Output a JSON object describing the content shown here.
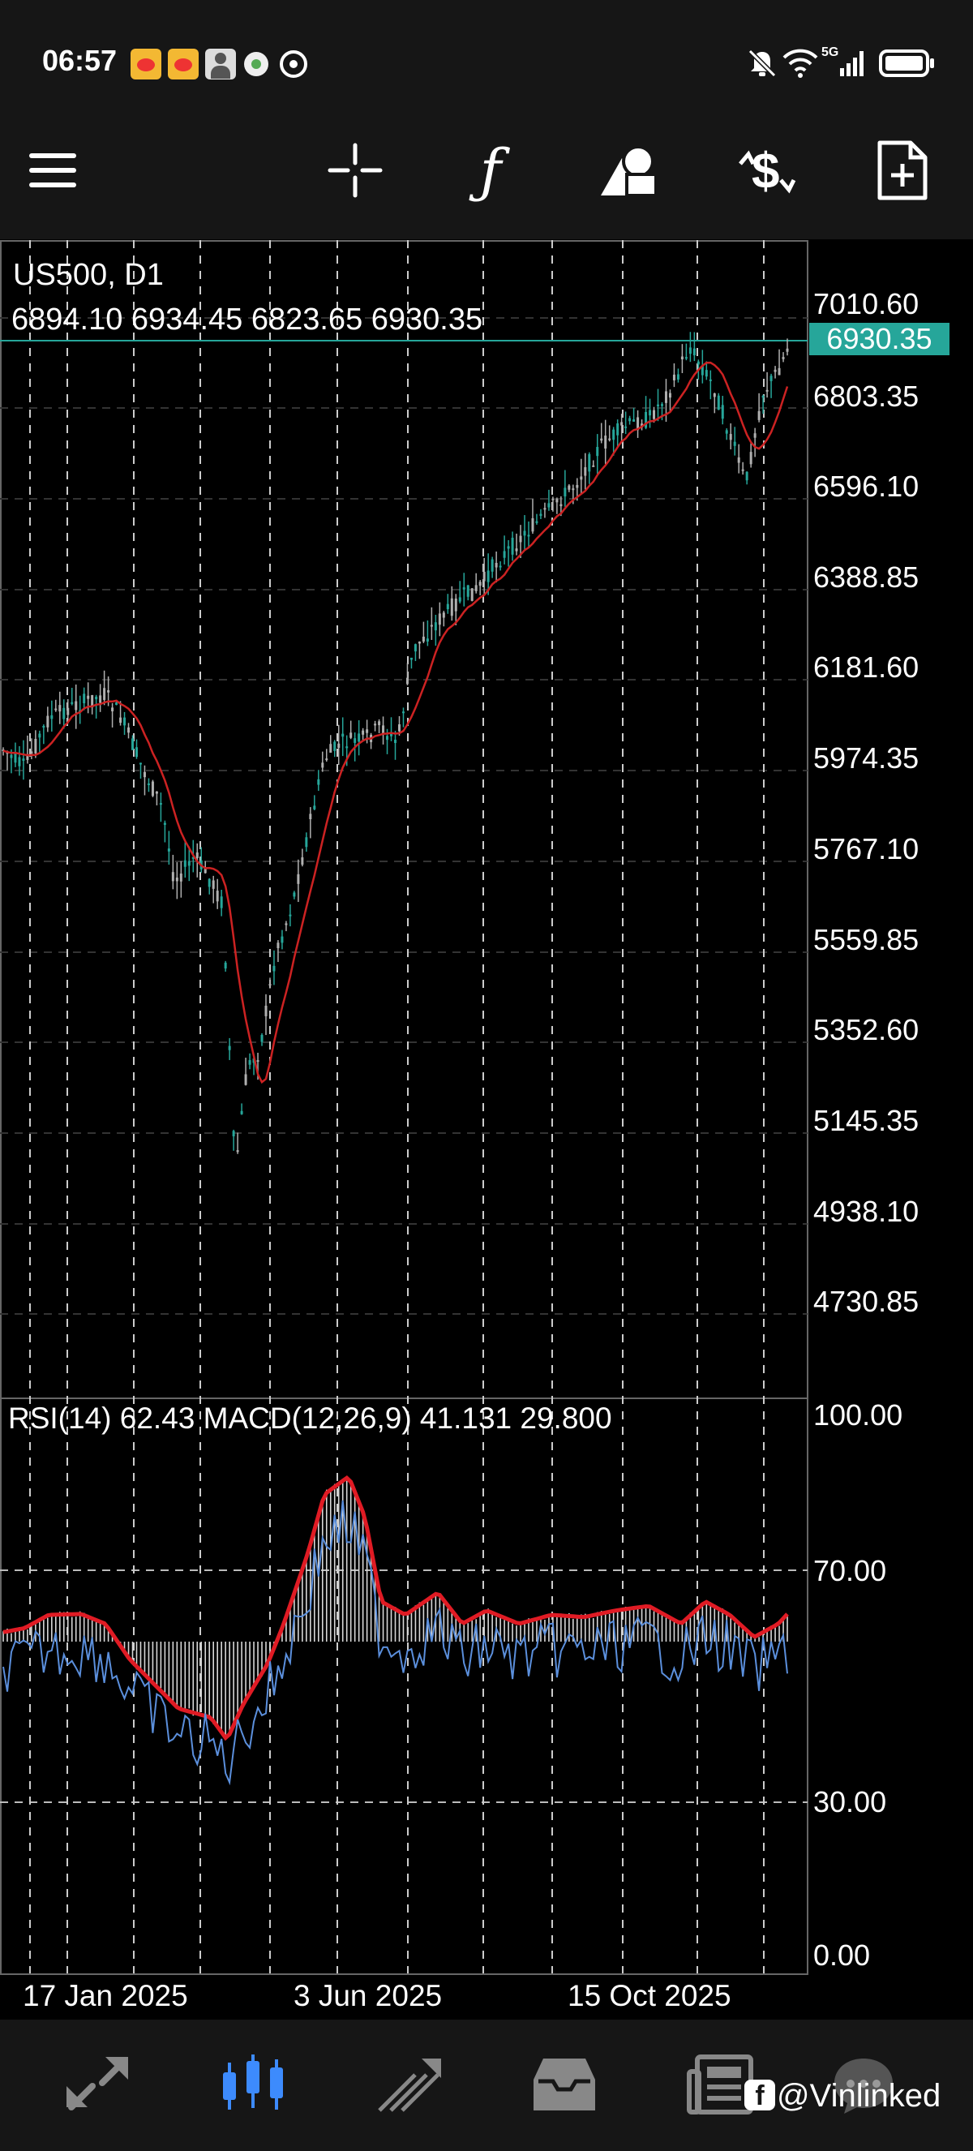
{
  "status_bar": {
    "time": "06:57",
    "network": "5G",
    "app_icons": [
      "weibo-icon",
      "weibo-icon",
      "avatar-icon",
      "small-app-icon",
      "signal-app-icon"
    ],
    "right_icons": [
      "mute-icon",
      "wifi-icon",
      "cell-signal-icon",
      "battery-icon"
    ]
  },
  "toolbar": {
    "icons": [
      "menu-icon",
      "crosshair-icon",
      "function-icon",
      "objects-icon",
      "trade-icon",
      "new-document-icon"
    ]
  },
  "chart": {
    "symbol": "US500, D1",
    "ohlc": "6894.10 6934.45 6823.65 6930.35",
    "current_price": "6930.35",
    "current_price_color": "#26a69a",
    "price_axis": [
      "7010.60",
      "6803.35",
      "6596.10",
      "6388.85",
      "6181.60",
      "5974.35",
      "5767.10",
      "5559.85",
      "5352.60",
      "5145.35",
      "4938.10",
      "4730.85"
    ],
    "ma_color": "#cc2222",
    "candle_up_color": "#26a69a",
    "candle_down_color": "#b0b0b0"
  },
  "indicator": {
    "label": "RSI(14) 62.43 MACD(12,26,9) 41.131 29.800",
    "axis": [
      "100.00",
      "70.00",
      "30.00",
      "0.00"
    ],
    "rsi_color": "#5b8fdc",
    "signal_color": "#e01b24"
  },
  "time_axis": [
    "17 Jan 2025",
    "3 Jun 2025",
    "15 Oct 2025"
  ],
  "bottom_nav": {
    "items": [
      "quotes-icon",
      "chart-icon",
      "trade-icon",
      "history-icon",
      "news-icon",
      "chat-icon"
    ],
    "active": "chart-icon",
    "active_color": "#3d8bfd"
  },
  "watermark": "@Vinlinked"
}
